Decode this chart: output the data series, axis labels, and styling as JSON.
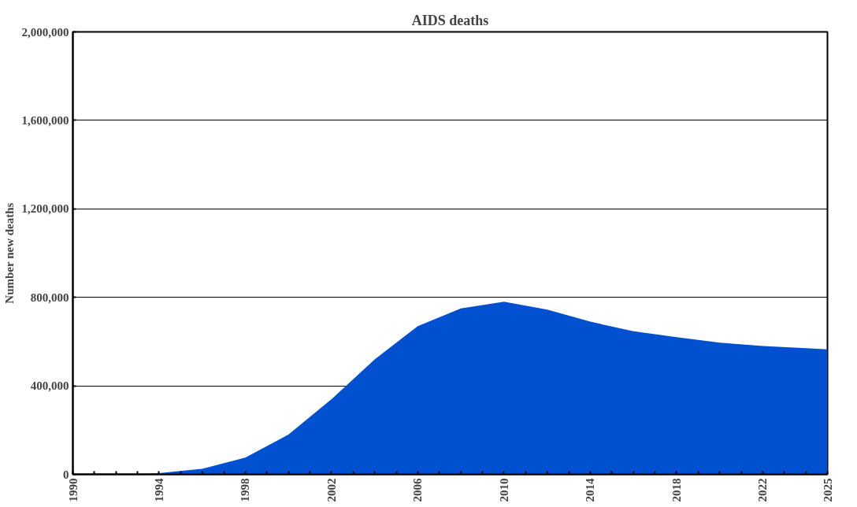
{
  "chart_data": {
    "type": "area",
    "title": "AIDS deaths",
    "ylabel": "Number new deaths",
    "color": "#0050d0",
    "x": [
      1990,
      1992,
      1993,
      1994,
      1996,
      1998,
      2000,
      2002,
      2004,
      2006,
      2008,
      2010,
      2012,
      2014,
      2016,
      2018,
      2020,
      2022,
      2024,
      2025
    ],
    "values": [
      0,
      0,
      0,
      5000,
      25000,
      76000,
      180000,
      340000,
      520000,
      670000,
      750000,
      780000,
      745000,
      690000,
      647000,
      620000,
      595000,
      580000,
      570000,
      565000
    ],
    "xlim": [
      1990,
      2025
    ],
    "xticks": [
      1990,
      {
        "value": 1991,
        "label": null
      },
      {
        "value": 1992,
        "label": null
      },
      {
        "value": 1993,
        "label": null
      },
      1994,
      {
        "value": 1995,
        "label": null
      },
      {
        "value": 1996,
        "label": null
      },
      {
        "value": 1997,
        "label": null
      },
      1998,
      {
        "value": 1999,
        "label": null
      },
      {
        "value": 2000,
        "label": null
      },
      {
        "value": 2001,
        "label": null
      },
      2002,
      {
        "value": 2003,
        "label": null
      },
      {
        "value": 2004,
        "label": null
      },
      {
        "value": 2005,
        "label": null
      },
      2006,
      {
        "value": 2007,
        "label": null
      },
      {
        "value": 2008,
        "label": null
      },
      {
        "value": 2009,
        "label": null
      },
      2010,
      {
        "value": 2011,
        "label": null
      },
      {
        "value": 2012,
        "label": null
      },
      {
        "value": 2013,
        "label": null
      },
      2014,
      {
        "value": 2015,
        "label": null
      },
      {
        "value": 2016,
        "label": null
      },
      {
        "value": 2017,
        "label": null
      },
      2018,
      {
        "value": 2019,
        "label": null
      },
      {
        "value": 2020,
        "label": null
      },
      {
        "value": 2021,
        "label": null
      },
      2022,
      {
        "value": 2023,
        "label": null
      },
      {
        "value": 2024,
        "label": null
      },
      2025
    ],
    "ylim": [
      0,
      2000000
    ],
    "yticks": [
      {
        "value": 0,
        "label": "0"
      },
      {
        "value": 400000,
        "label": "400,000"
      },
      {
        "value": 800000,
        "label": "800,000"
      },
      {
        "value": 1200000,
        "label": "1,200,000"
      },
      {
        "value": 1600000,
        "label": "1,600,000"
      },
      {
        "value": 2000000,
        "label": "2,000,000"
      }
    ],
    "grid": "y"
  }
}
